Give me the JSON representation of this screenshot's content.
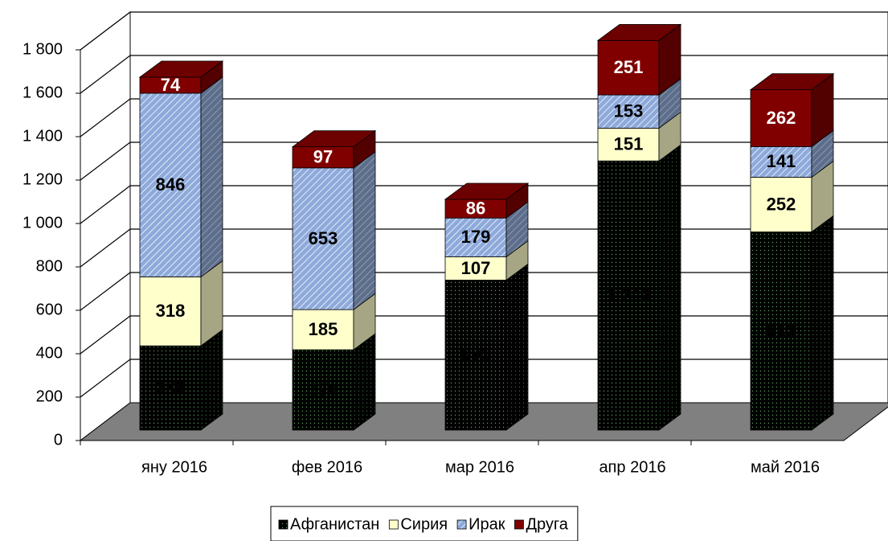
{
  "chart_data": {
    "type": "stacked-bar-3d",
    "categories": [
      "яну 2016",
      "фев 2016",
      "мар 2016",
      "апр 2016",
      "май 2016"
    ],
    "series": [
      {
        "name": "Афганистан",
        "color": "#ccffcc",
        "values": [
          388,
          370,
          691,
          1240,
          913
        ],
        "value_labels": [
          "388",
          "370",
          "691",
          "1 240",
          "913"
        ]
      },
      {
        "name": "Сирия",
        "color": "#ffffcc",
        "values": [
          318,
          185,
          107,
          151,
          252
        ]
      },
      {
        "name": "Ирак",
        "color": "#8eaadb",
        "values": [
          846,
          653,
          179,
          153,
          141
        ]
      },
      {
        "name": "Друга",
        "color": "#800000",
        "values": [
          74,
          97,
          86,
          251,
          262
        ]
      }
    ],
    "ylim": [
      0,
      1800
    ],
    "yticks": [
      0,
      200,
      400,
      600,
      800,
      {
        "value": 1000,
        "label": "1 000"
      },
      {
        "value": 1200,
        "label": "1 200"
      },
      {
        "value": 1400,
        "label": "1 400"
      },
      {
        "value": 1600,
        "label": "1 600"
      },
      {
        "value": 1800,
        "label": "1 800"
      }
    ],
    "grid": true,
    "legend": "bottom"
  }
}
